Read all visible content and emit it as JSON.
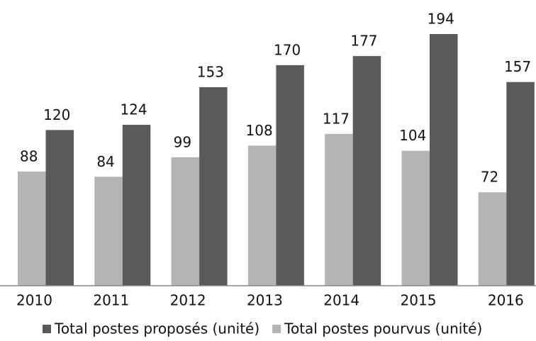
{
  "chart_data": {
    "type": "bar",
    "categories": [
      "2010",
      "2011",
      "2012",
      "2013",
      "2014",
      "2015",
      "2016"
    ],
    "series": [
      {
        "name": "Total postes pourvus (unité)",
        "color": "#b4b4b4",
        "values": [
          88,
          84,
          99,
          108,
          117,
          104,
          72
        ]
      },
      {
        "name": "Total postes proposés (unité)",
        "color": "#5a5a5a",
        "values": [
          120,
          124,
          153,
          170,
          177,
          194,
          157
        ]
      }
    ],
    "legend_order": [
      1,
      0
    ],
    "ylim": [
      0,
      200
    ]
  }
}
